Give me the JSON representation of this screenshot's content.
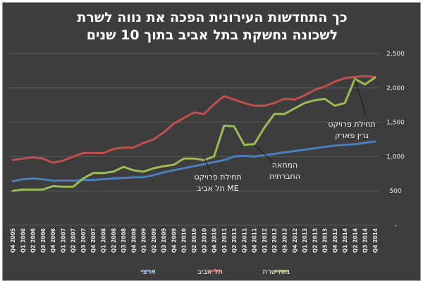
{
  "title_line1": "כך התחדשות העירונית הפכה את נווה לשרת",
  "title_line2": "לשכונה נחשקת בתל אביב בתוך 10 שנים",
  "chart_data": {
    "type": "line",
    "title": "כך התחדשות העירונית הפכה את נווה לשרת לשכונה נחשקת בתל אביב בתוך 10 שנים",
    "xlabel": "",
    "ylabel": "",
    "ylim": [
      0,
      2500
    ],
    "yticks": [
      0,
      500,
      1000,
      1500,
      2000,
      2500
    ],
    "ytick_labels": [
      "-",
      "500",
      "1,000",
      "1,500",
      "2,000",
      "2,500"
    ],
    "grid": true,
    "legend_position": "bottom",
    "categories": [
      "Q4 2005",
      "Q1 2006",
      "Q2 2006",
      "Q3 2006",
      "Q4 2006",
      "Q1 2007",
      "Q2 2007",
      "Q3 2007",
      "Q4 2007",
      "Q1 2008",
      "Q2 2008",
      "Q3 2008",
      "Q4 2008",
      "Q1 2009",
      "Q2 2009",
      "Q3 2009",
      "Q4 2009",
      "Q1 2010",
      "Q2 2010",
      "Q3 2010",
      "Q4 2010",
      "Q1 2011",
      "Q2 2011",
      "Q3 2011",
      "Q4 2011",
      "Q1 2012",
      "Q2 2012",
      "Q3 2012",
      "Q4 2012",
      "Q1 2013",
      "Q2 2013",
      "Q3 2013",
      "Q4 2013",
      "Q1 2014",
      "Q2 2014",
      "Q3 2014",
      "Q4 2014"
    ],
    "series": [
      {
        "name": "ארצי",
        "color": "#4a7ebf",
        "values": [
          640,
          670,
          680,
          670,
          650,
          650,
          650,
          660,
          660,
          670,
          680,
          690,
          700,
          700,
          730,
          770,
          800,
          830,
          860,
          890,
          920,
          950,
          1000,
          1010,
          1000,
          1020,
          1040,
          1060,
          1080,
          1100,
          1120,
          1140,
          1160,
          1170,
          1180,
          1200,
          1220
        ]
      },
      {
        "name": "תל אביב",
        "color": "#c0504d",
        "values": [
          950,
          970,
          990,
          970,
          910,
          940,
          1000,
          1050,
          1050,
          1050,
          1110,
          1130,
          1130,
          1200,
          1250,
          1350,
          1480,
          1560,
          1640,
          1620,
          1760,
          1880,
          1830,
          1780,
          1740,
          1740,
          1780,
          1840,
          1830,
          1890,
          1970,
          2020,
          2090,
          2140,
          2160,
          2170,
          2160
        ]
      },
      {
        "name": "נווה שרת",
        "color": "#9bbb59",
        "values": [
          500,
          520,
          520,
          520,
          570,
          560,
          560,
          680,
          760,
          760,
          780,
          850,
          800,
          780,
          830,
          860,
          880,
          970,
          970,
          950,
          1000,
          1450,
          1440,
          1170,
          1180,
          1420,
          1620,
          1620,
          1700,
          1780,
          1820,
          1840,
          1740,
          1780,
          2130,
          2050,
          2150
        ]
      }
    ],
    "annotations": [
      {
        "lines": [
          "תחילת פרויקט",
          "ME תל אביב"
        ],
        "category": "Q3 2010",
        "value": 1000
      },
      {
        "lines": [
          "המחאה",
          "החברתית"
        ],
        "category": "Q4 2011",
        "value": 1170
      },
      {
        "lines": [
          "תחילת פרויקט",
          "גרין פארק"
        ],
        "category": "Q2 2014",
        "value": 2130
      }
    ]
  }
}
